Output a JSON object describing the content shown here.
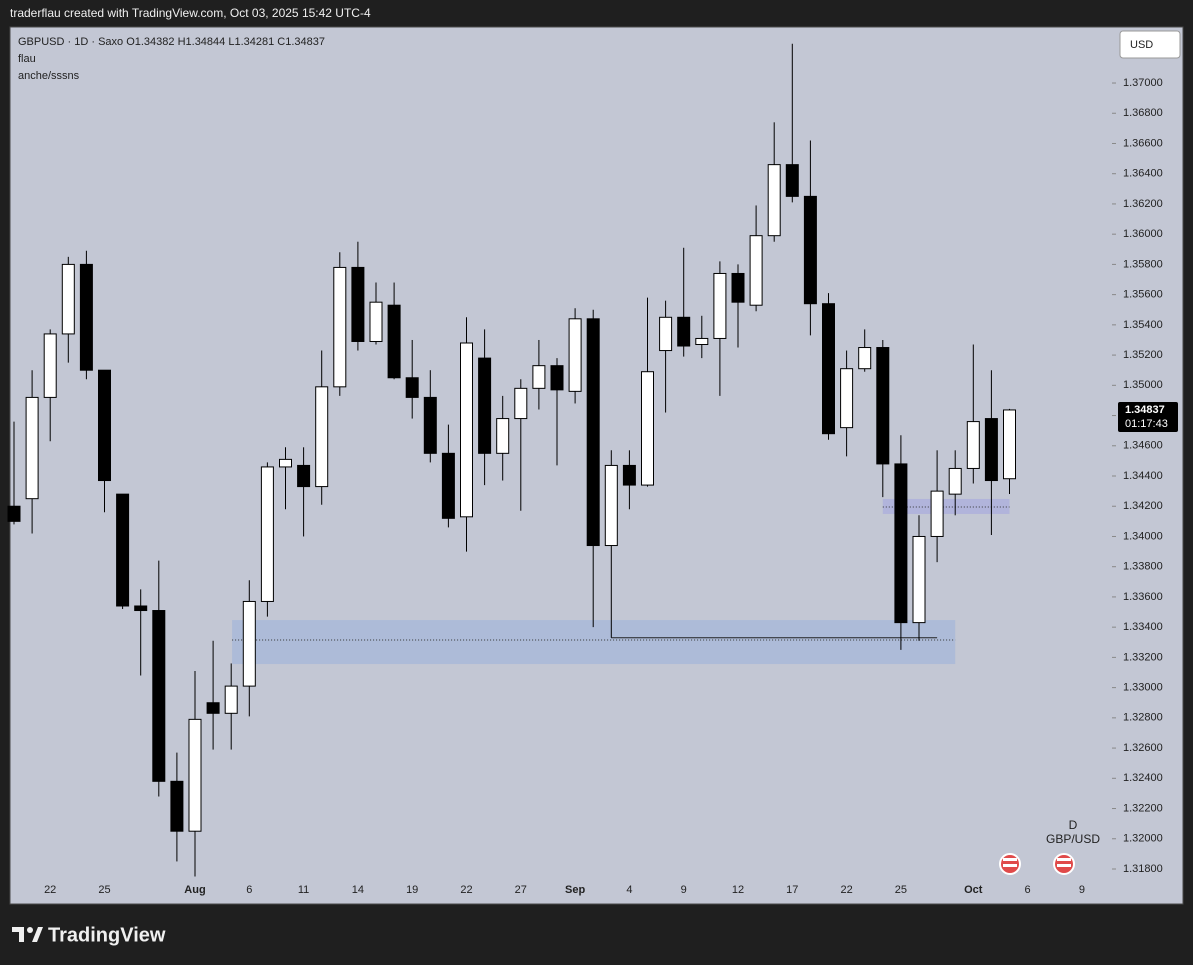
{
  "page": {
    "header": "traderflau created with TradingView.com, Oct 03, 2025 15:42 UTC-4",
    "brand": "TradingView",
    "currency_button": "USD"
  },
  "chart_data": {
    "type": "candlestick",
    "title": "GBPUSD · 1D · Saxo   O1.34382   H1.34844   L1.34281   C1.34837",
    "indicators": [
      "flau",
      "anche/sssns"
    ],
    "categories": [
      null,
      null,
      "22",
      null,
      null,
      "25",
      null,
      null,
      null,
      null,
      "Aug",
      null,
      null,
      "6",
      null,
      null,
      "11",
      null,
      null,
      "14",
      null,
      null,
      "19",
      null,
      null,
      "22",
      null,
      null,
      "27",
      null,
      null,
      "Sep",
      null,
      null,
      "4",
      null,
      null,
      "9",
      null,
      null,
      "12",
      null,
      null,
      "17",
      null,
      null,
      "22",
      null,
      null,
      "25",
      null,
      null,
      null,
      "Oct",
      null,
      null,
      "6",
      null,
      null,
      "9"
    ],
    "open": [
      1.342,
      1.3425,
      1.3492,
      1.3534,
      1.358,
      1.351,
      1.3428,
      1.3354,
      1.3351,
      1.3238,
      1.3205,
      1.329,
      1.3283,
      1.3301,
      1.3357,
      1.3446,
      1.3447,
      1.3433,
      1.3499,
      1.3578,
      1.3529,
      1.3553,
      1.3505,
      1.3492,
      1.3455,
      1.3413,
      1.3518,
      1.3455,
      1.3478,
      1.3498,
      1.3513,
      1.3496,
      1.3544,
      1.3394,
      1.3447,
      1.3434,
      1.3523,
      1.3545,
      1.3527,
      1.3531,
      1.3574,
      1.3553,
      1.3599,
      1.3646,
      1.3625,
      1.3554,
      1.3472,
      1.3511,
      1.3525,
      1.3448,
      1.3343,
      1.34,
      1.3428,
      1.3445,
      1.3478,
      1.34382,
      null,
      null,
      null,
      null
    ],
    "high": [
      1.3476,
      1.351,
      1.3537,
      1.3585,
      1.3589,
      1.351,
      1.3428,
      1.3365,
      1.3384,
      1.3257,
      1.3311,
      1.3331,
      1.3316,
      1.3371,
      1.3449,
      1.3459,
      1.3459,
      1.3523,
      1.3588,
      1.3595,
      1.3568,
      1.3568,
      1.353,
      1.351,
      1.3474,
      1.3545,
      1.3537,
      1.3493,
      1.3504,
      1.353,
      1.3518,
      1.3551,
      1.355,
      1.3457,
      1.3457,
      1.3558,
      1.3556,
      1.3591,
      1.3546,
      1.3582,
      1.358,
      1.3619,
      1.3674,
      1.3726,
      1.3662,
      1.3561,
      1.3523,
      1.3537,
      1.353,
      1.3467,
      1.3414,
      1.3457,
      1.3457,
      1.3527,
      1.351,
      1.34844,
      null,
      null,
      null,
      null
    ],
    "low": [
      1.3408,
      1.3402,
      1.3463,
      1.3515,
      1.3504,
      1.3416,
      1.3352,
      1.3308,
      1.3228,
      1.3185,
      1.3175,
      1.3259,
      1.3259,
      1.3281,
      1.3347,
      1.3418,
      1.34,
      1.3421,
      1.3493,
      1.3523,
      1.3527,
      1.3504,
      1.3478,
      1.3449,
      1.3406,
      1.339,
      1.3434,
      1.3437,
      1.3417,
      1.3484,
      1.3447,
      1.3488,
      1.334,
      1.3333,
      1.3418,
      1.3433,
      1.3482,
      1.3519,
      1.3518,
      1.3493,
      1.3525,
      1.3549,
      1.3595,
      1.3621,
      1.3533,
      1.3464,
      1.3453,
      1.3509,
      1.3426,
      1.3325,
      1.3331,
      1.3383,
      1.3414,
      1.3435,
      1.3401,
      1.34281,
      null,
      null,
      null,
      null
    ],
    "close": [
      1.341,
      1.3492,
      1.3534,
      1.358,
      1.351,
      1.3437,
      1.3354,
      1.3351,
      1.3238,
      1.3205,
      1.3279,
      1.3283,
      1.3301,
      1.3357,
      1.3446,
      1.3451,
      1.3433,
      1.3499,
      1.3578,
      1.3529,
      1.3555,
      1.3505,
      1.3492,
      1.3455,
      1.3412,
      1.3528,
      1.3455,
      1.3478,
      1.3498,
      1.3513,
      1.3497,
      1.3544,
      1.3394,
      1.3447,
      1.3434,
      1.3509,
      1.3545,
      1.3526,
      1.3531,
      1.3574,
      1.3555,
      1.3599,
      1.3646,
      1.3625,
      1.3554,
      1.3468,
      1.3511,
      1.3525,
      1.3448,
      1.3343,
      1.34,
      1.343,
      1.3445,
      1.3476,
      1.3437,
      1.34837,
      null,
      null,
      null,
      null
    ],
    "up_color": "#ffffff",
    "down_color": "#000000",
    "ylim": [
      1.31575,
      1.37364
    ],
    "yticks": [
      {
        "value": 1.37,
        "label": "1.37000"
      },
      {
        "value": 1.368,
        "label": "1.36800"
      },
      {
        "value": 1.366,
        "label": "1.36600"
      },
      {
        "value": 1.364,
        "label": "1.36400"
      },
      {
        "value": 1.362,
        "label": "1.36200"
      },
      {
        "value": 1.36,
        "label": "1.36000"
      },
      {
        "value": 1.358,
        "label": "1.35800"
      },
      {
        "value": 1.356,
        "label": "1.35600"
      },
      {
        "value": 1.354,
        "label": "1.35400"
      },
      {
        "value": 1.352,
        "label": "1.35200"
      },
      {
        "value": 1.35,
        "label": "1.35000"
      },
      {
        "value": 1.348,
        "label": "1.34800"
      },
      {
        "value": 1.346,
        "label": "1.34600"
      },
      {
        "value": 1.344,
        "label": "1.34400"
      },
      {
        "value": 1.342,
        "label": "1.34200"
      },
      {
        "value": 1.34,
        "label": "1.34000"
      },
      {
        "value": 1.338,
        "label": "1.33800"
      },
      {
        "value": 1.336,
        "label": "1.33600"
      },
      {
        "value": 1.334,
        "label": "1.33400"
      },
      {
        "value": 1.332,
        "label": "1.33200"
      },
      {
        "value": 1.33,
        "label": "1.33000"
      },
      {
        "value": 1.328,
        "label": "1.32800"
      },
      {
        "value": 1.326,
        "label": "1.32600"
      },
      {
        "value": 1.324,
        "label": "1.32400"
      },
      {
        "value": 1.322,
        "label": "1.32200"
      },
      {
        "value": 1.32,
        "label": "1.32000"
      },
      {
        "value": 1.318,
        "label": "1.31800"
      }
    ],
    "grid": false,
    "last_price": 1.34837,
    "countdown": "01:17:43",
    "zones": [
      {
        "top": 1.33447,
        "bottom": 1.33156,
        "mid": 1.33315,
        "color": "#a9b8d8"
      },
      {
        "top": 1.34248,
        "bottom": 1.34149,
        "mid": 1.34195,
        "color": "#aeb0dc"
      }
    ],
    "levels": [
      1.3333
    ],
    "symbol_badge": [
      "D",
      "GBP/USD"
    ]
  }
}
